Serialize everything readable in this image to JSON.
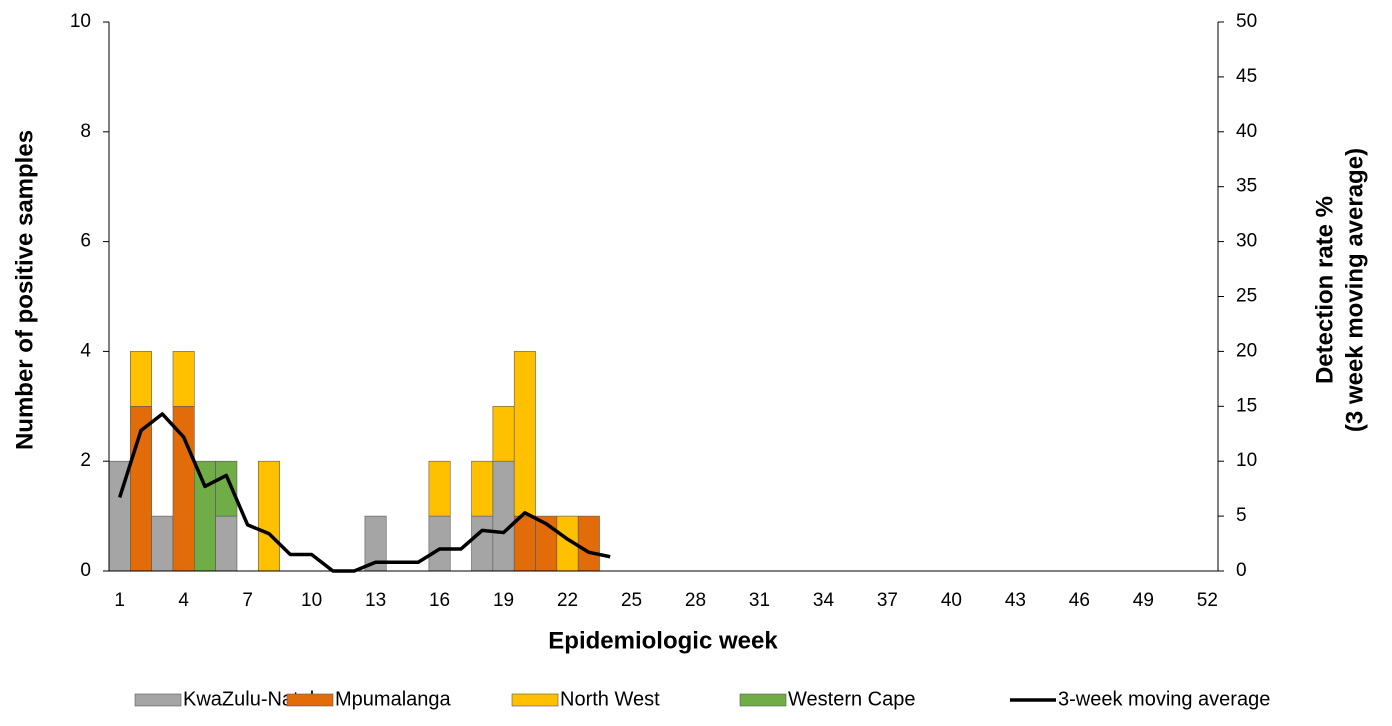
{
  "chart_data": {
    "type": "bar",
    "stacked": true,
    "xlabel": "Epidemiologic week",
    "ylabel": "Number of  positive samples",
    "y2label": [
      "Detection rate %",
      "(3 week moving average)"
    ],
    "categories": [
      "1",
      null,
      null,
      "4",
      null,
      null,
      "7",
      null,
      null,
      "10",
      null,
      null,
      "13",
      null,
      null,
      "16",
      null,
      null,
      "19",
      null,
      null,
      "22",
      null,
      null,
      "25",
      null,
      null,
      "28",
      null,
      null,
      "31",
      null,
      null,
      "34",
      null,
      null,
      "37",
      null,
      null,
      "40",
      null,
      null,
      "43",
      null,
      null,
      "46",
      null,
      null,
      "49",
      null,
      null,
      "52"
    ],
    "ylim": [
      0,
      10
    ],
    "yticks": [
      0,
      2,
      4,
      6,
      8,
      10
    ],
    "y2lim": [
      0,
      50
    ],
    "y2ticks": [
      0,
      5,
      10,
      15,
      20,
      25,
      30,
      35,
      40,
      45,
      50
    ],
    "series": [
      {
        "name": "KwaZulu-Natal",
        "color": "#a5a5a5",
        "values": [
          2,
          0,
          1,
          0,
          0,
          1,
          0,
          0,
          0,
          0,
          0,
          0,
          1,
          0,
          0,
          1,
          0,
          1,
          2,
          0,
          0,
          0,
          0,
          0,
          0,
          0,
          0,
          0,
          0,
          0,
          0,
          0,
          0,
          0,
          0,
          0,
          0,
          0,
          0,
          0,
          0,
          0,
          0,
          0,
          0,
          0,
          0,
          0,
          0,
          0,
          0,
          0
        ]
      },
      {
        "name": "Mpumalanga",
        "color": "#e36c0a",
        "values": [
          0,
          3,
          0,
          3,
          0,
          0,
          0,
          0,
          0,
          0,
          0,
          0,
          0,
          0,
          0,
          0,
          0,
          0,
          0,
          1,
          1,
          0,
          1,
          0,
          0,
          0,
          0,
          0,
          0,
          0,
          0,
          0,
          0,
          0,
          0,
          0,
          0,
          0,
          0,
          0,
          0,
          0,
          0,
          0,
          0,
          0,
          0,
          0,
          0,
          0,
          0,
          0
        ]
      },
      {
        "name": "North West",
        "color": "#ffc000",
        "values": [
          0,
          1,
          0,
          1,
          0,
          0,
          0,
          2,
          0,
          0,
          0,
          0,
          0,
          0,
          0,
          1,
          0,
          1,
          1,
          3,
          0,
          1,
          0,
          0,
          0,
          0,
          0,
          0,
          0,
          0,
          0,
          0,
          0,
          0,
          0,
          0,
          0,
          0,
          0,
          0,
          0,
          0,
          0,
          0,
          0,
          0,
          0,
          0,
          0,
          0,
          0,
          0
        ]
      },
      {
        "name": "Western Cape",
        "color": "#70ad47",
        "values": [
          0,
          0,
          0,
          0,
          2,
          1,
          0,
          0,
          0,
          0,
          0,
          0,
          0,
          0,
          0,
          0,
          0,
          0,
          0,
          0,
          0,
          0,
          0,
          0,
          0,
          0,
          0,
          0,
          0,
          0,
          0,
          0,
          0,
          0,
          0,
          0,
          0,
          0,
          0,
          0,
          0,
          0,
          0,
          0,
          0,
          0,
          0,
          0,
          0,
          0,
          0,
          0
        ]
      },
      {
        "name": "3-week moving average",
        "type": "line",
        "axis": "y2",
        "color": "#000000",
        "values": [
          6.7,
          12.8,
          14.3,
          12.2,
          7.7,
          8.7,
          4.2,
          3.4,
          1.5,
          1.5,
          0,
          0,
          0.8,
          0.8,
          0.8,
          2.0,
          2.0,
          3.7,
          3.5,
          5.3,
          4.3,
          2.9,
          1.7,
          1.3,
          null,
          null,
          null,
          null,
          null,
          null,
          null,
          null,
          null,
          null,
          null,
          null,
          null,
          null,
          null,
          null,
          null,
          null,
          null,
          null,
          null,
          null,
          null,
          null,
          null,
          null,
          null,
          null
        ]
      }
    ]
  }
}
